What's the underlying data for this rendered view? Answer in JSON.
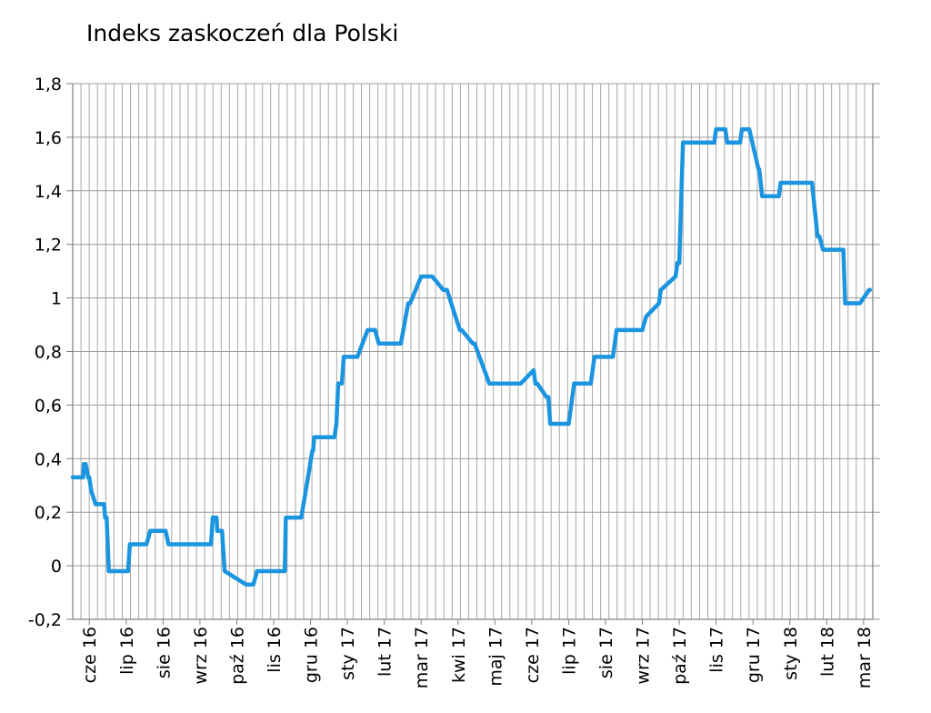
{
  "chart_data": {
    "type": "line",
    "title": "Indeks zaskoczeń dla Polski",
    "xlabel": "",
    "ylabel": "",
    "ylim": [
      -0.2,
      1.8
    ],
    "yticks": [
      -0.2,
      0,
      0.2,
      0.4,
      0.6,
      0.8,
      1,
      1.2,
      1.4,
      1.6,
      1.8
    ],
    "ytick_labels": [
      "-0,2",
      "0",
      "0,2",
      "0,4",
      "0,6",
      "0,8",
      "1",
      "1,2",
      "1,4",
      "1,6",
      "1,8"
    ],
    "x_tick_labels": [
      "cze 16",
      "lip 16",
      "sie 16",
      "wrz 16",
      "paź 16",
      "lis 16",
      "gru 16",
      "sty 17",
      "lut 17",
      "mar 17",
      "kwi 17",
      "maj 17",
      "cze 17",
      "lip 17",
      "sie 17",
      "wrz 17",
      "paź 17",
      "lis 17",
      "gru 17",
      "sty 18",
      "lut 18",
      "mar 18"
    ],
    "grid": "vertical dense, horizontal at y ticks",
    "line_color": "#1b95e0",
    "series": [
      {
        "name": "",
        "x": [
          0.0,
          0.15,
          0.28,
          0.3,
          0.35,
          0.42,
          0.45,
          0.5,
          0.62,
          0.68,
          0.7,
          0.85,
          0.88,
          0.92,
          0.98,
          1.12,
          1.15,
          1.2,
          1.5,
          1.55,
          1.65,
          1.7,
          1.75,
          1.95,
          2.0,
          2.1,
          2.5,
          2.52,
          2.6,
          2.65,
          2.72,
          2.8,
          3.05,
          3.08,
          3.2,
          3.4,
          3.45,
          3.55,
          3.6,
          3.75,
          3.8,
          3.9,
          3.92,
          4.05,
          4.12,
          4.7,
          4.75,
          4.9,
          5.0,
          5.05,
          5.2,
          5.25,
          5.25,
          5.75,
          5.78,
          6.0,
          6.05,
          6.1,
          6.2,
          6.5,
          6.52,
          6.55,
          6.57,
          6.6,
          7.0,
          7.05,
          7.1,
          7.15,
          7.2,
          7.3,
          7.35,
          7.6,
          7.62,
          7.65,
          7.7,
          7.72,
          8.0,
          8.1,
          8.2,
          8.3,
          8.6,
          8.62,
          8.9,
          9.1,
          9.15,
          9.45,
          9.5,
          9.7,
          9.75,
          10.05,
          10.1,
          10.15,
          10.5,
          10.55,
          10.85,
          10.9,
          11.3,
          11.35,
          11.6,
          11.65,
          11.7,
          11.9,
          12.15,
          12.5,
          12.55,
          12.6,
          12.85,
          12.9,
          12.95,
          13.2,
          13.3,
          13.4,
          13.45,
          13.5,
          13.6,
          13.9,
          14.0,
          14.05,
          14.15,
          14.2,
          14.5,
          14.55,
          14.65,
          14.75,
          14.8,
          15.1,
          15.15,
          15.3,
          15.35,
          15.45,
          15.55,
          15.9,
          15.95,
          16.35,
          16.4,
          16.45,
          16.55,
          16.6,
          16.7,
          16.8,
          17.4,
          17.45,
          17.5,
          17.7,
          17.75,
          17.9,
          18.1,
          18.15,
          18.35,
          18.6,
          18.62,
          18.7,
          18.75,
          18.9,
          19.0,
          19.05,
          19.15,
          19.2,
          19.85,
          19.9,
          19.95,
          20.05,
          20.2,
          20.25,
          20.35,
          20.4,
          20.45,
          20.5,
          20.9,
          20.95,
          21.05,
          21.3,
          21.35,
          21.6,
          21.62
        ],
        "y": [
          0.33,
          0.33,
          0.33,
          0.38,
          0.38,
          0.33,
          0.33,
          0.28,
          0.23,
          0.23,
          0.23,
          0.23,
          0.18,
          0.18,
          -0.02,
          -0.02,
          -0.02,
          -0.02,
          -0.02,
          0.08,
          0.08,
          0.08,
          0.08,
          0.08,
          0.08,
          0.13,
          0.13,
          0.13,
          0.08,
          0.08,
          0.08,
          0.08,
          0.08,
          0.08,
          0.08,
          0.08,
          0.08,
          0.08,
          0.08,
          0.08,
          0.18,
          0.18,
          0.13,
          0.13,
          -0.02,
          -0.07,
          -0.07,
          -0.07,
          -0.02,
          -0.02,
          -0.02,
          -0.02,
          -0.02,
          -0.02,
          0.18,
          0.18,
          0.18,
          0.18,
          0.18,
          0.43,
          0.43,
          0.48,
          0.48,
          0.48,
          0.48,
          0.48,
          0.48,
          0.53,
          0.68,
          0.68,
          0.78,
          0.78,
          0.78,
          0.78,
          0.78,
          0.78,
          0.88,
          0.88,
          0.88,
          0.83,
          0.83,
          0.83,
          0.83,
          0.98,
          0.98,
          1.08,
          1.08,
          1.08,
          1.08,
          1.03,
          1.03,
          1.03,
          0.88,
          0.88,
          0.83,
          0.83,
          0.68,
          0.68,
          0.68,
          0.68,
          0.68,
          0.68,
          0.68,
          0.73,
          0.68,
          0.68,
          0.63,
          0.63,
          0.53,
          0.53,
          0.53,
          0.53,
          0.53,
          0.58,
          0.68,
          0.68,
          0.68,
          0.68,
          0.78,
          0.78,
          0.78,
          0.78,
          0.78,
          0.88,
          0.88,
          0.88,
          0.88,
          0.88,
          0.88,
          0.88,
          0.93,
          0.98,
          1.03,
          1.08,
          1.13,
          1.13,
          1.58,
          1.58,
          1.58,
          1.58,
          1.58,
          1.63,
          1.63,
          1.63,
          1.58,
          1.58,
          1.58,
          1.63,
          1.63,
          1.48,
          1.48,
          1.38,
          1.38,
          1.38,
          1.38,
          1.38,
          1.38,
          1.43,
          1.43,
          1.43,
          1.43,
          1.43,
          1.23,
          1.23,
          1.18,
          1.18,
          1.18,
          1.18,
          1.18,
          0.98,
          0.98,
          0.98,
          0.98,
          1.03,
          1.03
        ]
      }
    ]
  }
}
